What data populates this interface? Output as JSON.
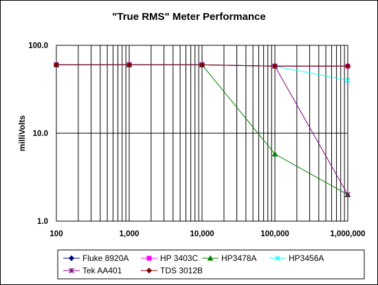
{
  "chart_data": {
    "type": "line",
    "title": "\"True RMS\" Meter Performance",
    "xlabel": "",
    "ylabel": "milliVolts",
    "x_scale": "log",
    "y_scale": "log",
    "xlim": [
      100,
      1000000
    ],
    "ylim": [
      1,
      100
    ],
    "x_ticks": [
      100,
      1000,
      10000,
      100000,
      1000000
    ],
    "x_tick_labels": [
      "100",
      "1,000",
      "10,000",
      "100,000",
      "1,000,000"
    ],
    "y_ticks": [
      1,
      10,
      100
    ],
    "y_tick_labels": [
      "1.0",
      "10.0",
      "100.0"
    ],
    "grid": {
      "x_major": true,
      "x_minor": true,
      "y_major": true
    },
    "legend_position": "bottom",
    "x": [
      100,
      1000,
      10000,
      100000,
      1000000
    ],
    "series": [
      {
        "name": "Fluke 8920A",
        "color": "#000080",
        "marker": "diamond",
        "values": [
          60,
          60,
          60,
          58,
          58
        ]
      },
      {
        "name": "HP 3403C",
        "color": "#ff00ff",
        "marker": "square",
        "values": [
          60,
          60,
          60,
          58,
          58
        ]
      },
      {
        "name": "HP3478A",
        "color": "#008000",
        "marker": "triangle",
        "values": [
          60,
          60,
          60,
          5.8,
          2.0
        ]
      },
      {
        "name": "HP3456A",
        "color": "#00ffff",
        "marker": "x",
        "values": [
          60,
          60,
          60,
          58,
          40
        ]
      },
      {
        "name": "Tek AA401",
        "color": "#800080",
        "marker": "star",
        "values": [
          60,
          60,
          60,
          58,
          2.0
        ]
      },
      {
        "name": "TDS 3012B",
        "color": "#800000",
        "marker": "diamond",
        "values": [
          60,
          60,
          60,
          58,
          58
        ]
      }
    ]
  }
}
